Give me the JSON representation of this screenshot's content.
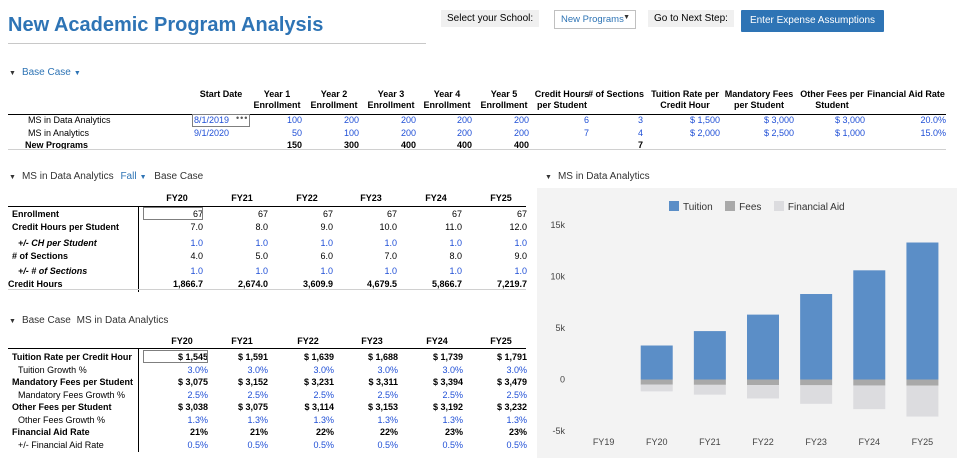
{
  "header": {
    "title": "New Academic Program Analysis",
    "select_school_label": "Select your School:",
    "school_value": "New Programs",
    "next_step_label": "Go to Next Step:",
    "next_step_button": "Enter Expense Assumptions"
  },
  "base_case": {
    "label": "Base Case",
    "columns": [
      "Start Date",
      "Year 1 Enrollment",
      "Year 2 Enrollment",
      "Year 3 Enrollment",
      "Year 4 Enrollment",
      "Year 5 Enrollment",
      "Credit Hours per Student",
      "# of Sections",
      "Tuition Rate per Credit Hour",
      "Mandatory Fees per Student",
      "Other Fees per Student",
      "Financial Aid Rate"
    ],
    "rows": [
      {
        "name": "MS in Data Analytics",
        "cells": [
          "8/1/2019",
          "100",
          "200",
          "200",
          "200",
          "200",
          "6",
          "3",
          "$ 1,500",
          "$ 3,000",
          "$ 3,000",
          "20.0%"
        ]
      },
      {
        "name": "MS in Analytics",
        "cells": [
          "9/1/2020",
          "50",
          "100",
          "200",
          "200",
          "200",
          "7",
          "4",
          "$ 2,000",
          "$ 2,500",
          "$ 1,000",
          "15.0%"
        ]
      },
      {
        "name": "New Programs",
        "cells": [
          "",
          "150",
          "300",
          "400",
          "400",
          "400",
          "",
          "7",
          "",
          "",
          "",
          ""
        ]
      }
    ]
  },
  "enrollment": {
    "program": "MS in Data Analytics",
    "term": "Fall",
    "case": "Base Case",
    "years": [
      "FY20",
      "FY21",
      "FY22",
      "FY23",
      "FY24",
      "FY25"
    ],
    "rows": [
      {
        "label": "Enrollment",
        "values": [
          "67",
          "67",
          "67",
          "67",
          "67",
          "67"
        ]
      },
      {
        "label": "Credit Hours per Student",
        "values": [
          "7.0",
          "8.0",
          "9.0",
          "10.0",
          "11.0",
          "12.0"
        ]
      },
      {
        "label": "+/- CH per Student",
        "values": [
          "1.0",
          "1.0",
          "1.0",
          "1.0",
          "1.0",
          "1.0"
        ]
      },
      {
        "label": "# of Sections",
        "values": [
          "4.0",
          "5.0",
          "6.0",
          "7.0",
          "8.0",
          "9.0"
        ]
      },
      {
        "label": "+/- # of Sections",
        "values": [
          "1.0",
          "1.0",
          "1.0",
          "1.0",
          "1.0",
          "1.0"
        ]
      },
      {
        "label": "Credit Hours",
        "values": [
          "1,866.7",
          "2,674.0",
          "3,609.9",
          "4,679.5",
          "5,866.7",
          "7,219.7"
        ]
      }
    ]
  },
  "rates": {
    "case": "Base Case",
    "program": "MS in Data Analytics",
    "years": [
      "FY20",
      "FY21",
      "FY22",
      "FY23",
      "FY24",
      "FY25"
    ],
    "rows": [
      {
        "label": "Tuition Rate per Credit Hour",
        "values": [
          "$ 1,545",
          "$ 1,591",
          "$ 1,639",
          "$ 1,688",
          "$ 1,739",
          "$ 1,791"
        ]
      },
      {
        "label": "Tuition Growth %",
        "values": [
          "3.0%",
          "3.0%",
          "3.0%",
          "3.0%",
          "3.0%",
          "3.0%"
        ]
      },
      {
        "label": "Mandatory Fees per Student",
        "values": [
          "$ 3,075",
          "$ 3,152",
          "$ 3,231",
          "$ 3,311",
          "$ 3,394",
          "$ 3,479"
        ]
      },
      {
        "label": "Mandatory Fees Growth %",
        "values": [
          "2.5%",
          "2.5%",
          "2.5%",
          "2.5%",
          "2.5%",
          "2.5%"
        ]
      },
      {
        "label": "Other Fees per Student",
        "values": [
          "$ 3,038",
          "$ 3,075",
          "$ 3,114",
          "$ 3,153",
          "$ 3,192",
          "$ 3,232"
        ]
      },
      {
        "label": "Other Fees Growth %",
        "values": [
          "1.3%",
          "1.3%",
          "1.3%",
          "1.3%",
          "1.3%",
          "1.3%"
        ]
      },
      {
        "label": "Financial Aid Rate",
        "values": [
          "21%",
          "21%",
          "22%",
          "22%",
          "23%",
          "23%"
        ]
      },
      {
        "label": "+/- Financial Aid Rate",
        "values": [
          "0.5%",
          "0.5%",
          "0.5%",
          "0.5%",
          "0.5%",
          "0.5%"
        ]
      }
    ]
  },
  "chart_panel": {
    "title": "MS in Data Analytics"
  },
  "chart_data": {
    "type": "bar",
    "stacked": true,
    "categories": [
      "FY19",
      "FY20",
      "FY21",
      "FY22",
      "FY23",
      "FY24",
      "FY25"
    ],
    "series": [
      {
        "name": "Tuition",
        "color": "#5b8ec7",
        "values": [
          0,
          3300,
          4700,
          6300,
          8300,
          10600,
          13300
        ]
      },
      {
        "name": "Fees",
        "color": "#a9a9a9",
        "values": [
          0,
          500,
          520,
          540,
          560,
          580,
          600
        ]
      },
      {
        "name": "Financial Aid",
        "color": "#dcdcdf",
        "values": [
          0,
          -650,
          -950,
          -1300,
          -1800,
          -2300,
          -3000
        ]
      }
    ],
    "yticks": [
      "15k",
      "10k",
      "5k",
      "0",
      "-5k"
    ],
    "ylim": [
      -5000,
      15000
    ],
    "legend_position": "top"
  },
  "colors": {
    "accent": "#2e74b5",
    "input_blue": "#1f4fd6",
    "tuition": "#5b8ec7",
    "fees": "#a9a9a9",
    "aid": "#dcdcdf"
  }
}
